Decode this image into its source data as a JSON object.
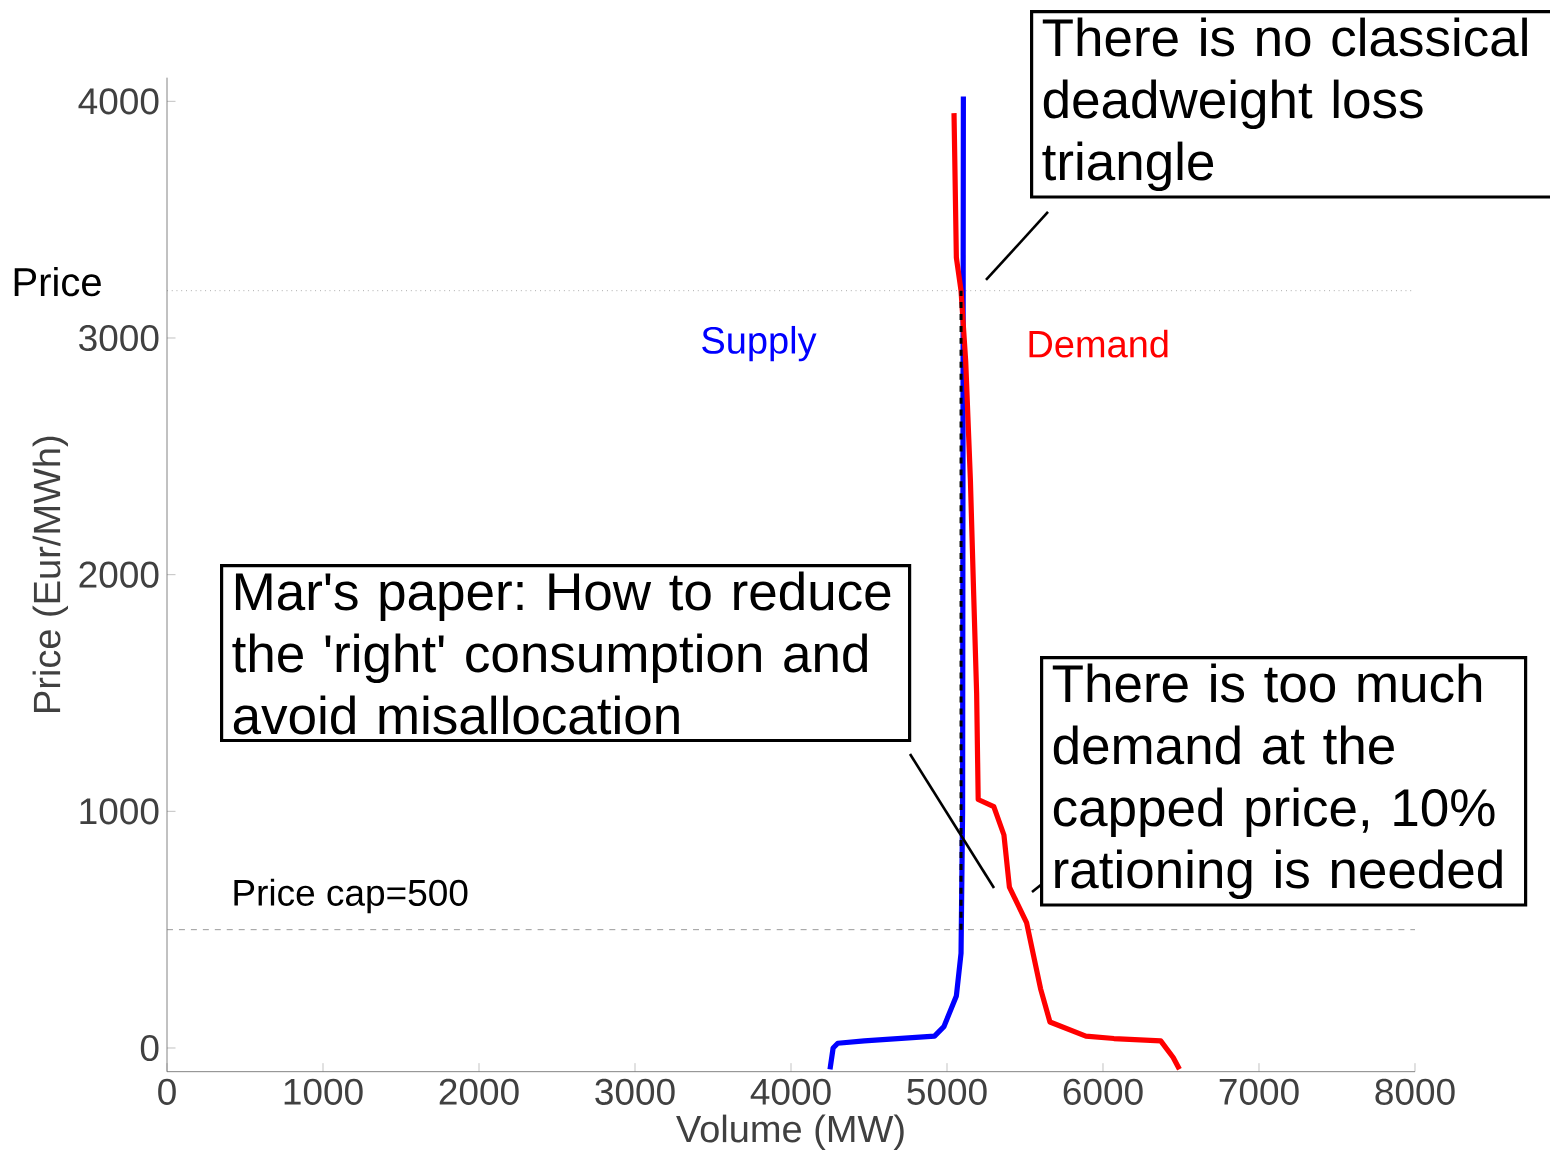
{
  "chart_data": {
    "type": "line",
    "xlabel": "Volume (MW)",
    "ylabel": "Price (Eur/MWh)",
    "xlim": [
      0,
      8000
    ],
    "ylim": [
      -100,
      4100
    ],
    "xticks": [
      0,
      1000,
      2000,
      3000,
      4000,
      5000,
      6000,
      7000,
      8000
    ],
    "yticks": [
      0,
      1000,
      2000,
      3000,
      4000
    ],
    "grid": false,
    "marker": "none",
    "series": [
      {
        "name": "Supply",
        "color": "#0000ff",
        "x": [
          4250,
          4270,
          4300,
          4470,
          4920,
          4980,
          5060,
          5090,
          5100,
          5105
        ],
        "values": [
          -90,
          0,
          20,
          30,
          50,
          90,
          220,
          400,
          1000,
          4020
        ]
      },
      {
        "name": "Demand",
        "color": "#ff0000",
        "x": [
          5045,
          5050,
          5060,
          5090,
          5120,
          5150,
          5170,
          5190,
          5200,
          5300,
          5365,
          5400,
          5510,
          5555,
          5600,
          5660,
          5890,
          6070,
          6370,
          6450,
          6490
        ],
        "values": [
          3950,
          3750,
          3340,
          3200,
          2900,
          2400,
          1940,
          1500,
          1050,
          1020,
          900,
          680,
          530,
          390,
          250,
          110,
          50,
          40,
          30,
          -40,
          -90
        ]
      },
      {
        "color": "#000000",
        "line_style": "dashed",
        "x": [
          5090,
          5090
        ],
        "values": [
          500,
          3200
        ]
      }
    ],
    "ref_lines": [
      {
        "axis": "y",
        "value": 3200,
        "label": "Price",
        "color": "#808080",
        "line_style": "dotted"
      },
      {
        "axis": "y",
        "value": 500,
        "label": "Price cap=500",
        "color": "#808080",
        "line_style": "dashed"
      }
    ],
    "annotations": [
      "There is no classical deadweight loss triangle",
      "Mar's paper: How to reduce the 'right' consumption and avoid misallocation",
      "There is too much demand at the capped price, 10% rationing is needed"
    ]
  }
}
